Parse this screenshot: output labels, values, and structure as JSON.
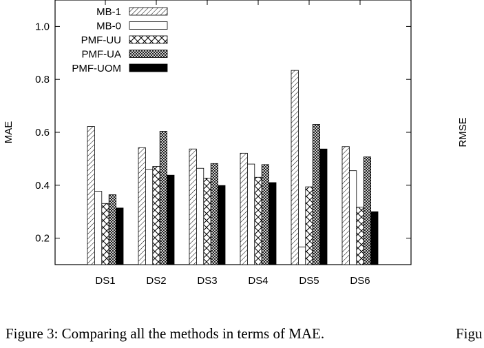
{
  "chart_data": [
    {
      "type": "bar",
      "title": "",
      "xlabel": "",
      "ylabel": "MAE",
      "ylim": [
        0.1,
        1.1
      ],
      "yticks": [
        "0.2",
        "0.4",
        "0.6",
        "0.8",
        "1.0"
      ],
      "grid": false,
      "legend_position": "top-left",
      "categories": [
        "DS1",
        "DS2",
        "DS3",
        "DS4",
        "DS5",
        "DS6"
      ],
      "series": [
        {
          "name": "MB-1",
          "pattern": "diagonal-hatch",
          "values": [
            0.622,
            0.542,
            0.537,
            0.521,
            0.834,
            0.546
          ]
        },
        {
          "name": "MB-0",
          "pattern": "solid-white",
          "values": [
            0.377,
            0.46,
            0.464,
            0.48,
            0.167,
            0.455
          ]
        },
        {
          "name": "PMF-UU",
          "pattern": "large-crosshatch",
          "values": [
            0.331,
            0.471,
            0.427,
            0.43,
            0.394,
            0.317
          ]
        },
        {
          "name": "PMF-UA",
          "pattern": "fine-crosshatch",
          "values": [
            0.364,
            0.604,
            0.482,
            0.478,
            0.63,
            0.507
          ]
        },
        {
          "name": "PMF-UOM",
          "pattern": "solid-black",
          "values": [
            0.314,
            0.438,
            0.399,
            0.41,
            0.537,
            0.3
          ]
        }
      ]
    },
    {
      "type": "bar",
      "title": "",
      "ylabel": "RMSE",
      "partial": true
    }
  ],
  "captions": {
    "left": "Figure 3: Comparing all the methods in terms of MAE.",
    "right": "Figu"
  },
  "colors": {
    "axis": "#000000",
    "background": "#ffffff"
  }
}
